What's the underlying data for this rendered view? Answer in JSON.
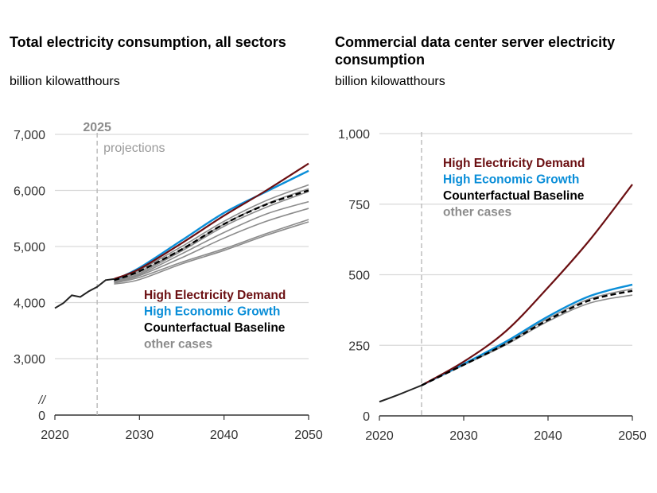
{
  "chart_data": [
    {
      "type": "line",
      "title": "Total electricity consumption, all sectors",
      "subtitle": "billion kilowatthours",
      "xlim": [
        2020,
        2050
      ],
      "ylim": [
        0,
        7000
      ],
      "y_axis_break": [
        0,
        3000
      ],
      "x_ticks": [
        "2020",
        "2030",
        "2040",
        "2050"
      ],
      "y_ticks": [
        "0",
        "3,000",
        "4,000",
        "5,000",
        "6,000",
        "7,000"
      ],
      "y_tick_values": [
        0,
        3000,
        4000,
        5000,
        6000,
        7000
      ],
      "axis_break_label": "//",
      "grid": true,
      "annotations": {
        "year_line": 2025,
        "year_label": "2025",
        "projections_label": "projections"
      },
      "legend": [
        "High Electricity Demand",
        "High Economic Growth",
        "Counterfactual Baseline",
        "other cases"
      ],
      "history": {
        "x": [
          2020,
          2021,
          2022,
          2023,
          2024,
          2025,
          2026,
          2027
        ],
        "y": [
          3900,
          3990,
          4130,
          4100,
          4200,
          4280,
          4400,
          4420
        ]
      },
      "proj_x": [
        2027,
        2030,
        2035,
        2040,
        2045,
        2050
      ],
      "series": [
        {
          "name": "other cases",
          "style": "other",
          "y": [
            4400,
            4580,
            5000,
            5450,
            5820,
            6100
          ]
        },
        {
          "name": "other cases",
          "style": "other",
          "y": [
            4380,
            4550,
            4950,
            5400,
            5760,
            6030
          ]
        },
        {
          "name": "other cases",
          "style": "other",
          "y": [
            4380,
            4500,
            4870,
            5250,
            5580,
            5800
          ]
        },
        {
          "name": "other cases",
          "style": "other",
          "y": [
            4360,
            4480,
            4800,
            5150,
            5450,
            5680
          ]
        },
        {
          "name": "other cases",
          "style": "other",
          "y": [
            4350,
            4450,
            4720,
            4960,
            5230,
            5480
          ]
        },
        {
          "name": "other cases",
          "style": "other",
          "y": [
            4330,
            4410,
            4690,
            4930,
            5200,
            5440
          ]
        },
        {
          "name": "other cases",
          "style": "other",
          "y": [
            4370,
            4520,
            4920,
            5360,
            5700,
            5980
          ]
        },
        {
          "name": "High Economic Growth",
          "style": "growth",
          "y": [
            4400,
            4620,
            5110,
            5600,
            5980,
            6350
          ]
        },
        {
          "name": "High Electricity Demand",
          "style": "demand",
          "y": [
            4420,
            4600,
            5060,
            5550,
            6000,
            6480
          ]
        },
        {
          "name": "Counterfactual Baseline",
          "style": "baseline",
          "y": [
            4400,
            4560,
            4950,
            5400,
            5750,
            6000
          ]
        }
      ]
    },
    {
      "type": "line",
      "title": "Commercial data center server electricity consumption",
      "subtitle": "billion kilowatthours",
      "xlim": [
        2020,
        2050
      ],
      "ylim": [
        0,
        1000
      ],
      "x_ticks": [
        "2020",
        "2030",
        "2040",
        "2050"
      ],
      "y_ticks": [
        "0",
        "250",
        "500",
        "750",
        "1,000"
      ],
      "y_tick_values": [
        0,
        250,
        500,
        750,
        1000
      ],
      "grid": true,
      "annotations": {
        "year_line": 2025
      },
      "legend": [
        "High Electricity Demand",
        "High Economic Growth",
        "Counterfactual Baseline",
        "other cases"
      ],
      "history": {
        "x": [
          2020,
          2022,
          2025
        ],
        "y": [
          50,
          72,
          108
        ]
      },
      "proj_x": [
        2025,
        2030,
        2035,
        2040,
        2045,
        2050
      ],
      "series": [
        {
          "name": "other cases",
          "style": "other",
          "y": [
            108,
            180,
            252,
            335,
            400,
            428
          ]
        },
        {
          "name": "other cases",
          "style": "other",
          "y": [
            108,
            182,
            258,
            345,
            415,
            450
          ]
        },
        {
          "name": "High Economic Growth",
          "style": "growth",
          "y": [
            108,
            184,
            263,
            352,
            425,
            465
          ]
        },
        {
          "name": "High Electricity Demand",
          "style": "demand",
          "y": [
            108,
            192,
            300,
            455,
            625,
            820
          ]
        },
        {
          "name": "Counterfactual Baseline",
          "style": "baseline",
          "y": [
            108,
            181,
            255,
            340,
            410,
            443
          ]
        }
      ]
    }
  ],
  "colors": {
    "demand": "#6b0f12",
    "growth": "#0a8ed8",
    "baseline": "#000000",
    "other": "#8c8c8c",
    "grid": "#d9d9d9",
    "history": "#222222"
  }
}
